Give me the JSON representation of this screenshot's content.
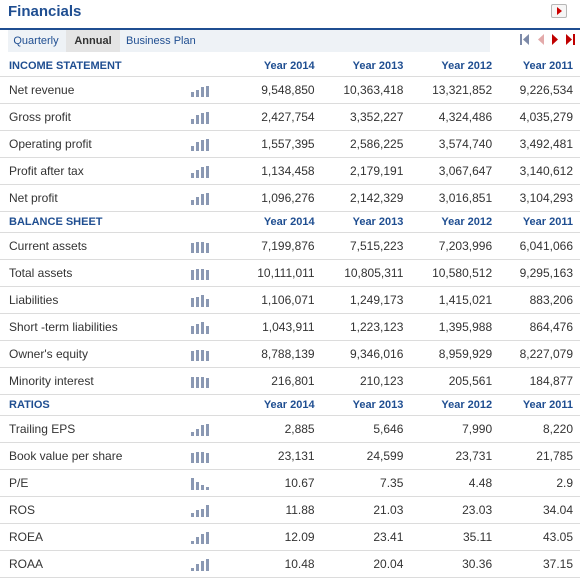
{
  "header": {
    "title": "Financials"
  },
  "tabs": [
    {
      "label": "Quarterly",
      "active": false
    },
    {
      "label": "Annual",
      "active": true
    },
    {
      "label": "Business Plan",
      "active": false
    }
  ],
  "colors": {
    "accent": "#1f4e91",
    "pager_arrow": "#c00000",
    "bar": "#8a98b3"
  },
  "sections": [
    {
      "title": "INCOME STATEMENT",
      "years": [
        "Year 2014",
        "Year 2013",
        "Year 2012",
        "Year 2011"
      ],
      "rows": [
        {
          "label": "Net revenue",
          "values": [
            "9,548,850",
            "10,363,418",
            "13,321,852",
            "9,226,534"
          ],
          "bars": [
            0.35,
            0.55,
            0.75,
            0.85
          ]
        },
        {
          "label": "Gross profit",
          "values": [
            "2,427,754",
            "3,352,227",
            "4,324,486",
            "4,035,279"
          ],
          "bars": [
            0.4,
            0.7,
            0.85,
            0.9
          ]
        },
        {
          "label": "Operating profit",
          "values": [
            "1,557,395",
            "2,586,225",
            "3,574,740",
            "3,492,481"
          ],
          "bars": [
            0.4,
            0.7,
            0.85,
            0.9
          ]
        },
        {
          "label": "Profit after tax",
          "values": [
            "1,134,458",
            "2,179,191",
            "3,067,647",
            "3,140,612"
          ],
          "bars": [
            0.35,
            0.65,
            0.85,
            0.9
          ]
        },
        {
          "label": "Net profit",
          "values": [
            "1,096,276",
            "2,142,329",
            "3,016,851",
            "3,104,293"
          ],
          "bars": [
            0.35,
            0.65,
            0.85,
            0.9
          ]
        }
      ]
    },
    {
      "title": "BALANCE SHEET",
      "years": [
        "Year 2014",
        "Year 2013",
        "Year 2012",
        "Year 2011"
      ],
      "rows": [
        {
          "label": "Current assets",
          "values": [
            "7,199,876",
            "7,515,223",
            "7,203,996",
            "6,041,066"
          ],
          "bars": [
            0.8,
            0.85,
            0.85,
            0.8
          ]
        },
        {
          "label": "Total assets",
          "values": [
            "10,111,011",
            "10,805,311",
            "10,580,512",
            "9,295,163"
          ],
          "bars": [
            0.8,
            0.85,
            0.85,
            0.8
          ]
        },
        {
          "label": "Liabilities",
          "values": [
            "1,106,071",
            "1,249,173",
            "1,415,021",
            "883,206"
          ],
          "bars": [
            0.7,
            0.8,
            0.9,
            0.6
          ]
        },
        {
          "label": "Short -term liabilities",
          "values": [
            "1,043,911",
            "1,223,123",
            "1,395,988",
            "864,476"
          ],
          "bars": [
            0.65,
            0.8,
            0.9,
            0.6
          ]
        },
        {
          "label": "Owner's equity",
          "values": [
            "8,788,139",
            "9,346,016",
            "8,959,929",
            "8,227,079"
          ],
          "bars": [
            0.8,
            0.85,
            0.85,
            0.8
          ]
        },
        {
          "label": "Minority interest",
          "values": [
            "216,801",
            "210,123",
            "205,561",
            "184,877"
          ],
          "bars": [
            0.85,
            0.85,
            0.85,
            0.8
          ]
        }
      ]
    },
    {
      "title": "RATIOS",
      "years": [
        "Year 2014",
        "Year 2013",
        "Year 2012",
        "Year 2011"
      ],
      "rows": [
        {
          "label": "Trailing EPS",
          "values": [
            "2,885",
            "5,646",
            "7,990",
            "8,220"
          ],
          "bars": [
            0.3,
            0.55,
            0.85,
            0.9
          ]
        },
        {
          "label": "Book value per share",
          "values": [
            "23,131",
            "24,599",
            "23,731",
            "21,785"
          ],
          "bars": [
            0.8,
            0.85,
            0.85,
            0.8
          ]
        },
        {
          "label": "P/E",
          "values": [
            "10.67",
            "7.35",
            "4.48",
            "2.9"
          ],
          "bars": [
            0.9,
            0.6,
            0.4,
            0.25
          ]
        },
        {
          "label": "ROS",
          "values": [
            "11.88",
            "21.03",
            "23.03",
            "34.04"
          ],
          "bars": [
            0.3,
            0.55,
            0.65,
            0.9
          ]
        },
        {
          "label": "ROEA",
          "values": [
            "12.09",
            "23.41",
            "35.11",
            "43.05"
          ],
          "bars": [
            0.25,
            0.5,
            0.75,
            0.9
          ]
        },
        {
          "label": "ROAA",
          "values": [
            "10.48",
            "20.04",
            "30.36",
            "37.15"
          ],
          "bars": [
            0.25,
            0.5,
            0.75,
            0.9
          ]
        }
      ]
    }
  ]
}
